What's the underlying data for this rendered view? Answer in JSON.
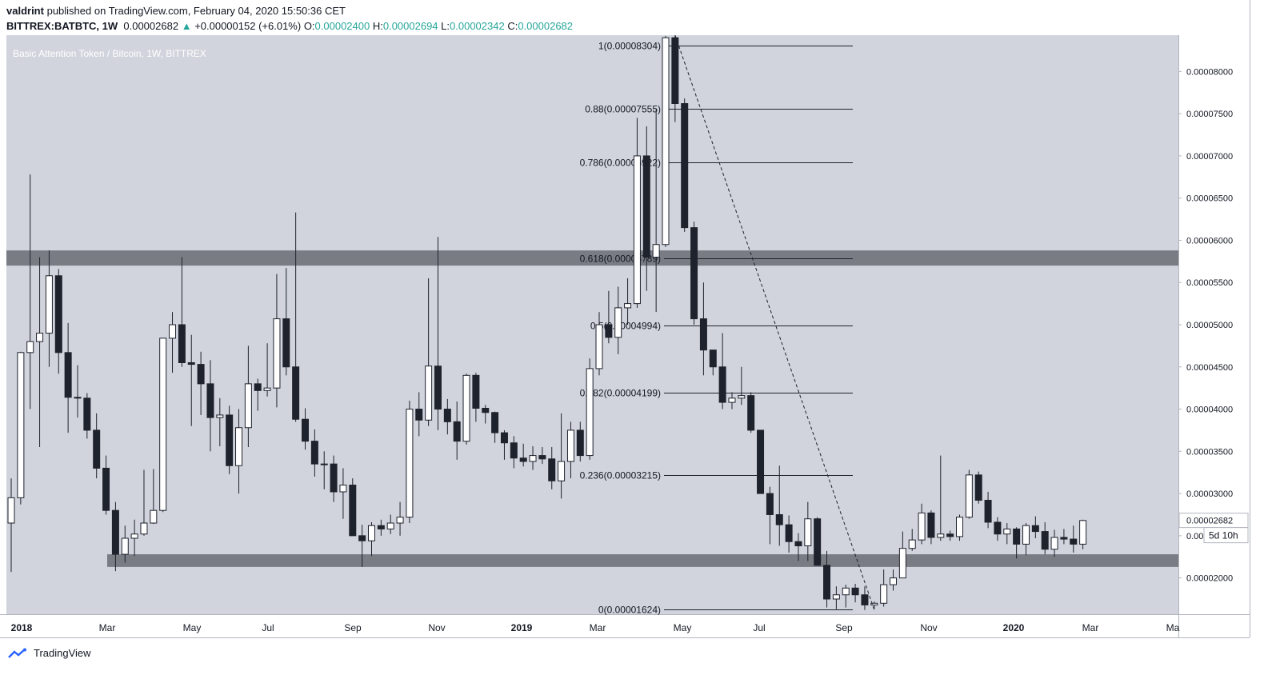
{
  "header": {
    "author": "valdrint",
    "published_text": "published on TradingView.com, February 04, 2020 15:50:36 CET",
    "symbol": "BITTREX:BATBTC, 1W",
    "last": "0.00002682",
    "change": "+0.00000152 (+6.01%)",
    "o_label": "O:",
    "o_value": "0.00002400",
    "h_label": "H:",
    "h_value": "0.00002694",
    "l_label": "L:",
    "l_value": "0.00002342",
    "c_label": "C:",
    "c_value": "0.00002682"
  },
  "footer": {
    "brand": "TradingView"
  },
  "colors": {
    "background": "#d1d4dc",
    "up_candle": "#ffffff",
    "down_candle": "#1e222d",
    "zone": "#6a6d73",
    "fib_line": "#1e222d",
    "price_tag": "#ffffff"
  },
  "chart_data": {
    "type": "candlestick",
    "title": "Basic Attention Token / Bitcoin, 1W, BITTREX",
    "x_tick_labels": [
      "2018",
      "Mar",
      "May",
      "Jul",
      "Sep",
      "Nov",
      "2019",
      "Mar",
      "May",
      "Jul",
      "Sep",
      "Nov",
      "2020",
      "Mar",
      "Ma"
    ],
    "y_tick_labels": [
      "0.00002000",
      "0.00002500",
      "0.00003000",
      "0.00003500",
      "0.00004000",
      "0.00004500",
      "0.00005000",
      "0.00005500",
      "0.00006000",
      "0.00006500",
      "0.00007000",
      "0.00007500",
      "0.00008000"
    ],
    "ylim": [
      1.57e-05,
      8.43e-05
    ],
    "last_price_label": "0.00002682",
    "countdown_label": "5d 10h",
    "fib_levels": [
      {
        "label": "1(0.00008304)",
        "value": 8.304e-05
      },
      {
        "label": "0.88(0.00007555)",
        "value": 7.555e-05
      },
      {
        "label": "0.786(0.00006922)",
        "value": 6.922e-05
      },
      {
        "label": "0.618(0.00005789)",
        "value": 5.789e-05
      },
      {
        "label": "0.5(0.00004994)",
        "value": 4.994e-05
      },
      {
        "label": "0.382(0.00004199)",
        "value": 4.199e-05
      },
      {
        "label": "0.236(0.00003215)",
        "value": 3.215e-05
      },
      {
        "label": "0(0.00001624)",
        "value": 1.624e-05
      }
    ],
    "zones": [
      {
        "low": 5.7e-05,
        "high": 5.88e-05
      },
      {
        "low": 2.13e-05,
        "high": 2.28e-05
      }
    ],
    "candles": [
      {
        "o": 2.65e-05,
        "h": 3.18e-05,
        "l": 2.07e-05,
        "c": 2.95e-05
      },
      {
        "o": 2.95e-05,
        "h": 4.68e-05,
        "l": 2.87e-05,
        "c": 4.67e-05
      },
      {
        "o": 4.67e-05,
        "h": 6.78e-05,
        "l": 4e-05,
        "c": 4.8e-05
      },
      {
        "o": 4.8e-05,
        "h": 5.8e-05,
        "l": 3.55e-05,
        "c": 4.9e-05
      },
      {
        "o": 4.9e-05,
        "h": 5.88e-05,
        "l": 4.5e-05,
        "c": 5.58e-05
      },
      {
        "o": 5.58e-05,
        "h": 5.66e-05,
        "l": 4.42e-05,
        "c": 4.67e-05
      },
      {
        "o": 4.67e-05,
        "h": 5.02e-05,
        "l": 3.72e-05,
        "c": 4.14e-05
      },
      {
        "o": 4.14e-05,
        "h": 4.52e-05,
        "l": 3.9e-05,
        "c": 4.13e-05
      },
      {
        "o": 4.13e-05,
        "h": 4.19e-05,
        "l": 3.65e-05,
        "c": 3.75e-05
      },
      {
        "o": 3.75e-05,
        "h": 3.95e-05,
        "l": 3.18e-05,
        "c": 3.3e-05
      },
      {
        "o": 3.3e-05,
        "h": 3.45e-05,
        "l": 2.75e-05,
        "c": 2.8e-05
      },
      {
        "o": 2.8e-05,
        "h": 2.9e-05,
        "l": 2.08e-05,
        "c": 2.28e-05
      },
      {
        "o": 2.28e-05,
        "h": 2.62e-05,
        "l": 2.18e-05,
        "c": 2.47e-05
      },
      {
        "o": 2.47e-05,
        "h": 2.69e-05,
        "l": 2.26e-05,
        "c": 2.52e-05
      },
      {
        "o": 2.52e-05,
        "h": 3.28e-05,
        "l": 2.5e-05,
        "c": 2.65e-05
      },
      {
        "o": 2.65e-05,
        "h": 3.29e-05,
        "l": 2.64e-05,
        "c": 2.8e-05
      },
      {
        "o": 2.8e-05,
        "h": 4.82e-05,
        "l": 2.78e-05,
        "c": 4.84e-05
      },
      {
        "o": 4.84e-05,
        "h": 5.15e-05,
        "l": 4.43e-05,
        "c": 5e-05
      },
      {
        "o": 5e-05,
        "h": 5.8e-05,
        "l": 4.5e-05,
        "c": 4.55e-05
      },
      {
        "o": 4.55e-05,
        "h": 4.88e-05,
        "l": 3.8e-05,
        "c": 4.53e-05
      },
      {
        "o": 4.53e-05,
        "h": 4.68e-05,
        "l": 3.93e-05,
        "c": 4.3e-05
      },
      {
        "o": 4.3e-05,
        "h": 4.58e-05,
        "l": 3.5e-05,
        "c": 3.9e-05
      },
      {
        "o": 3.9e-05,
        "h": 4.13e-05,
        "l": 3.56e-05,
        "c": 3.93e-05
      },
      {
        "o": 3.93e-05,
        "h": 4.04e-05,
        "l": 3.23e-05,
        "c": 3.33e-05
      },
      {
        "o": 3.33e-05,
        "h": 4e-05,
        "l": 3e-05,
        "c": 3.78e-05
      },
      {
        "o": 3.78e-05,
        "h": 4.75e-05,
        "l": 3.55e-05,
        "c": 4.3e-05
      },
      {
        "o": 4.3e-05,
        "h": 4.36e-05,
        "l": 3.98e-05,
        "c": 4.22e-05
      },
      {
        "o": 4.22e-05,
        "h": 4.78e-05,
        "l": 4.15e-05,
        "c": 4.25e-05
      },
      {
        "o": 4.25e-05,
        "h": 5.6e-05,
        "l": 4.02e-05,
        "c": 5.07e-05
      },
      {
        "o": 5.07e-05,
        "h": 5.67e-05,
        "l": 4.4e-05,
        "c": 4.5e-05
      },
      {
        "o": 4.5e-05,
        "h": 6.33e-05,
        "l": 3.85e-05,
        "c": 3.88e-05
      },
      {
        "o": 3.88e-05,
        "h": 4.01e-05,
        "l": 3.52e-05,
        "c": 3.62e-05
      },
      {
        "o": 3.62e-05,
        "h": 3.76e-05,
        "l": 3.2e-05,
        "c": 3.35e-05
      },
      {
        "o": 3.35e-05,
        "h": 3.5e-05,
        "l": 3.05e-05,
        "c": 3.35e-05
      },
      {
        "o": 3.35e-05,
        "h": 3.45e-05,
        "l": 2.9e-05,
        "c": 3.02e-05
      },
      {
        "o": 3.02e-05,
        "h": 3.3e-05,
        "l": 2.7e-05,
        "c": 3.1e-05
      },
      {
        "o": 3.1e-05,
        "h": 3.18e-05,
        "l": 2.5e-05,
        "c": 2.5e-05
      },
      {
        "o": 2.5e-05,
        "h": 2.63e-05,
        "l": 2.13e-05,
        "c": 2.44e-05
      },
      {
        "o": 2.44e-05,
        "h": 2.66e-05,
        "l": 2.26e-05,
        "c": 2.62e-05
      },
      {
        "o": 2.62e-05,
        "h": 2.69e-05,
        "l": 2.5e-05,
        "c": 2.58e-05
      },
      {
        "o": 2.58e-05,
        "h": 2.75e-05,
        "l": 2.52e-05,
        "c": 2.65e-05
      },
      {
        "o": 2.65e-05,
        "h": 2.9e-05,
        "l": 2.5e-05,
        "c": 2.72e-05
      },
      {
        "o": 2.72e-05,
        "h": 4.1e-05,
        "l": 2.65e-05,
        "c": 4e-05
      },
      {
        "o": 4e-05,
        "h": 4.2e-05,
        "l": 3.68e-05,
        "c": 3.87e-05
      },
      {
        "o": 3.87e-05,
        "h": 5.55e-05,
        "l": 3.8e-05,
        "c": 4.51e-05
      },
      {
        "o": 4.51e-05,
        "h": 6.04e-05,
        "l": 3.75e-05,
        "c": 4e-05
      },
      {
        "o": 4e-05,
        "h": 4.12e-05,
        "l": 3.7e-05,
        "c": 3.85e-05
      },
      {
        "o": 3.85e-05,
        "h": 4.09e-05,
        "l": 3.4e-05,
        "c": 3.62e-05
      },
      {
        "o": 3.62e-05,
        "h": 4.42e-05,
        "l": 3.58e-05,
        "c": 4.4e-05
      },
      {
        "o": 4.4e-05,
        "h": 4.43e-05,
        "l": 3.85e-05,
        "c": 4.01e-05
      },
      {
        "o": 4.01e-05,
        "h": 4.05e-05,
        "l": 3.83e-05,
        "c": 3.96e-05
      },
      {
        "o": 3.96e-05,
        "h": 3.97e-05,
        "l": 3.6e-05,
        "c": 3.72e-05
      },
      {
        "o": 3.72e-05,
        "h": 3.75e-05,
        "l": 3.4e-05,
        "c": 3.6e-05
      },
      {
        "o": 3.6e-05,
        "h": 3.68e-05,
        "l": 3.3e-05,
        "c": 3.42e-05
      },
      {
        "o": 3.42e-05,
        "h": 3.59e-05,
        "l": 3.32e-05,
        "c": 3.38e-05
      },
      {
        "o": 3.38e-05,
        "h": 3.56e-05,
        "l": 3.28e-05,
        "c": 3.45e-05
      },
      {
        "o": 3.45e-05,
        "h": 3.55e-05,
        "l": 3.35e-05,
        "c": 3.41e-05
      },
      {
        "o": 3.41e-05,
        "h": 3.55e-05,
        "l": 3.05e-05,
        "c": 3.15e-05
      },
      {
        "o": 3.15e-05,
        "h": 3.95e-05,
        "l": 2.94e-05,
        "c": 3.38e-05
      },
      {
        "o": 3.38e-05,
        "h": 3.85e-05,
        "l": 3.18e-05,
        "c": 3.75e-05
      },
      {
        "o": 3.75e-05,
        "h": 3.85e-05,
        "l": 3.38e-05,
        "c": 3.45e-05
      },
      {
        "o": 3.45e-05,
        "h": 4.6e-05,
        "l": 3.4e-05,
        "c": 4.48e-05
      },
      {
        "o": 4.48e-05,
        "h": 5.15e-05,
        "l": 4.4e-05,
        "c": 5e-05
      },
      {
        "o": 5e-05,
        "h": 5.4e-05,
        "l": 4.78e-05,
        "c": 4.85e-05
      },
      {
        "o": 4.85e-05,
        "h": 5.45e-05,
        "l": 4.65e-05,
        "c": 5.2e-05
      },
      {
        "o": 5.2e-05,
        "h": 5.55e-05,
        "l": 5e-05,
        "c": 5.25e-05
      },
      {
        "o": 5.25e-05,
        "h": 7.45e-05,
        "l": 5.2e-05,
        "c": 7e-05
      },
      {
        "o": 7e-05,
        "h": 7.35e-05,
        "l": 5.4e-05,
        "c": 5.8e-05
      },
      {
        "o": 5.8e-05,
        "h": 7.55e-05,
        "l": 5.15e-05,
        "c": 5.95e-05
      },
      {
        "o": 5.95e-05,
        "h": 8.42e-05,
        "l": 5.92e-05,
        "c": 8.4e-05
      },
      {
        "o": 8.4e-05,
        "h": 8.43e-05,
        "l": 7.4e-05,
        "c": 7.62e-05
      },
      {
        "o": 7.62e-05,
        "h": 7.68e-05,
        "l": 6.1e-05,
        "c": 6.15e-05
      },
      {
        "o": 6.15e-05,
        "h": 6.22e-05,
        "l": 5e-05,
        "c": 5.07e-05
      },
      {
        "o": 5.07e-05,
        "h": 5.5e-05,
        "l": 4.4e-05,
        "c": 4.7e-05
      },
      {
        "o": 4.7e-05,
        "h": 4.7e-05,
        "l": 4.4e-05,
        "c": 4.5e-05
      },
      {
        "o": 4.5e-05,
        "h": 4.9e-05,
        "l": 4e-05,
        "c": 4.08e-05
      },
      {
        "o": 4.08e-05,
        "h": 4.2e-05,
        "l": 4e-05,
        "c": 4.13e-05
      },
      {
        "o": 4.13e-05,
        "h": 4.5e-05,
        "l": 4.05e-05,
        "c": 4.16e-05
      },
      {
        "o": 4.16e-05,
        "h": 4.2e-05,
        "l": 3.72e-05,
        "c": 3.75e-05
      },
      {
        "o": 3.75e-05,
        "h": 3.75e-05,
        "l": 3e-05,
        "c": 3e-05
      },
      {
        "o": 3e-05,
        "h": 3.08e-05,
        "l": 2.4e-05,
        "c": 2.75e-05
      },
      {
        "o": 2.75e-05,
        "h": 3.33e-05,
        "l": 2.38e-05,
        "c": 2.63e-05
      },
      {
        "o": 2.63e-05,
        "h": 2.74e-05,
        "l": 2.3e-05,
        "c": 2.43e-05
      },
      {
        "o": 2.43e-05,
        "h": 2.53e-05,
        "l": 2.2e-05,
        "c": 2.38e-05
      },
      {
        "o": 2.38e-05,
        "h": 2.9e-05,
        "l": 2.2e-05,
        "c": 2.7e-05
      },
      {
        "o": 2.7e-05,
        "h": 2.72e-05,
        "l": 2.15e-05,
        "c": 2.15e-05
      },
      {
        "o": 2.15e-05,
        "h": 2.32e-05,
        "l": 1.65e-05,
        "c": 1.75e-05
      },
      {
        "o": 1.75e-05,
        "h": 1.9e-05,
        "l": 1.63e-05,
        "c": 1.8e-05
      },
      {
        "o": 1.8e-05,
        "h": 1.92e-05,
        "l": 1.65e-05,
        "c": 1.88e-05
      },
      {
        "o": 1.88e-05,
        "h": 1.93e-05,
        "l": 1.71e-05,
        "c": 1.8e-05
      },
      {
        "o": 1.8e-05,
        "h": 1.9e-05,
        "l": 1.62e-05,
        "c": 1.68e-05
      },
      {
        "o": 1.68e-05,
        "h": 1.72e-05,
        "l": 1.63e-05,
        "c": 1.7e-05
      },
      {
        "o": 1.7e-05,
        "h": 2.1e-05,
        "l": 1.66e-05,
        "c": 1.92e-05
      },
      {
        "o": 1.92e-05,
        "h": 2.1e-05,
        "l": 1.85e-05,
        "c": 2e-05
      },
      {
        "o": 2e-05,
        "h": 2.55e-05,
        "l": 2e-05,
        "c": 2.35e-05
      },
      {
        "o": 2.35e-05,
        "h": 2.58e-05,
        "l": 2.32e-05,
        "c": 2.45e-05
      },
      {
        "o": 2.45e-05,
        "h": 2.88e-05,
        "l": 2.4e-05,
        "c": 2.77e-05
      },
      {
        "o": 2.77e-05,
        "h": 2.8e-05,
        "l": 2.4e-05,
        "c": 2.48e-05
      },
      {
        "o": 2.48e-05,
        "h": 3.45e-05,
        "l": 2.44e-05,
        "c": 2.52e-05
      },
      {
        "o": 2.52e-05,
        "h": 2.56e-05,
        "l": 2.44e-05,
        "c": 2.49e-05
      },
      {
        "o": 2.49e-05,
        "h": 2.75e-05,
        "l": 2.44e-05,
        "c": 2.72e-05
      },
      {
        "o": 2.72e-05,
        "h": 3.28e-05,
        "l": 2.7e-05,
        "c": 3.22e-05
      },
      {
        "o": 3.22e-05,
        "h": 3.26e-05,
        "l": 2.88e-05,
        "c": 2.92e-05
      },
      {
        "o": 2.92e-05,
        "h": 3.02e-05,
        "l": 2.59e-05,
        "c": 2.66e-05
      },
      {
        "o": 2.66e-05,
        "h": 2.72e-05,
        "l": 2.44e-05,
        "c": 2.52e-05
      },
      {
        "o": 2.52e-05,
        "h": 2.65e-05,
        "l": 2.4e-05,
        "c": 2.58e-05
      },
      {
        "o": 2.58e-05,
        "h": 2.6e-05,
        "l": 2.23e-05,
        "c": 2.4e-05
      },
      {
        "o": 2.4e-05,
        "h": 2.65e-05,
        "l": 2.27e-05,
        "c": 2.62e-05
      },
      {
        "o": 2.62e-05,
        "h": 2.73e-05,
        "l": 2.47e-05,
        "c": 2.55e-05
      },
      {
        "o": 2.55e-05,
        "h": 2.66e-05,
        "l": 2.28e-05,
        "c": 2.34e-05
      },
      {
        "o": 2.34e-05,
        "h": 2.57e-05,
        "l": 2.25e-05,
        "c": 2.48e-05
      },
      {
        "o": 2.48e-05,
        "h": 2.58e-05,
        "l": 2.4e-05,
        "c": 2.46e-05
      },
      {
        "o": 2.46e-05,
        "h": 2.62e-05,
        "l": 2.3e-05,
        "c": 2.4e-05
      },
      {
        "o": 2.4e-05,
        "h": 2.69e-05,
        "l": 2.34e-05,
        "c": 2.68e-05
      }
    ]
  }
}
